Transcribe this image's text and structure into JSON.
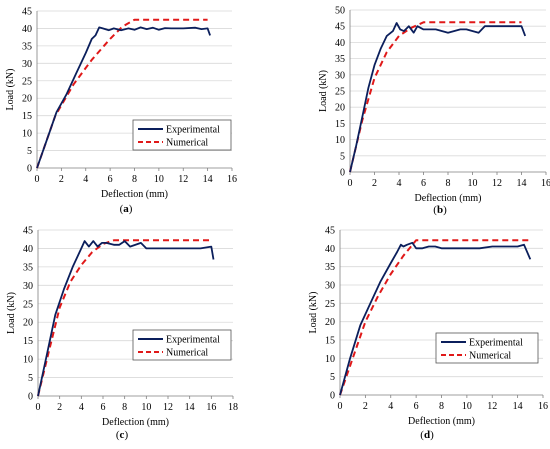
{
  "colors": {
    "experimental": "#0b1f5c",
    "numerical": "#e01919",
    "grid": "#d9d9d9",
    "axis": "#7f7f7f"
  },
  "chart_data": [
    {
      "type": "line",
      "caption": "(a)",
      "xlabel": "Deflection (mm)",
      "ylabel": "Load (kN)",
      "xlim": [
        0,
        16
      ],
      "ylim": [
        0,
        45
      ],
      "xticks": [
        0,
        2,
        4,
        6,
        8,
        10,
        12,
        14,
        16
      ],
      "yticks": [
        0,
        5,
        10,
        15,
        20,
        25,
        30,
        35,
        40,
        45
      ],
      "grid": "horizontal",
      "legend": "bottom-right",
      "series": [
        {
          "name": "Experimental",
          "style": "solid",
          "x": [
            0,
            0.8,
            1.6,
            2.4,
            3.2,
            4.0,
            4.5,
            4.8,
            5.1,
            5.4,
            5.9,
            6.3,
            6.9,
            7.5,
            8.0,
            8.5,
            9.0,
            9.5,
            10.0,
            10.5,
            11.0,
            12.0,
            13.0,
            13.5,
            14.0,
            14.2
          ],
          "y": [
            0,
            8,
            16,
            21,
            27,
            33,
            37,
            38,
            40.3,
            40,
            39.5,
            40,
            39.5,
            40,
            39.6,
            40.3,
            39.8,
            40.2,
            39.6,
            40.1,
            40,
            40,
            40.2,
            39.8,
            40,
            38
          ]
        },
        {
          "name": "Numerical",
          "style": "dashed",
          "x": [
            0,
            1.5,
            3.0,
            4.5,
            6.0,
            7.0,
            8.0,
            14.0
          ],
          "y": [
            0,
            15,
            24,
            31,
            37,
            40.5,
            42.5,
            42.5
          ]
        }
      ]
    },
    {
      "type": "line",
      "caption": "(b)",
      "xlabel": "Deflection (mm)",
      "ylabel": "Load (kN)",
      "xlim": [
        0,
        16
      ],
      "ylim": [
        0,
        50
      ],
      "xticks": [
        0,
        2,
        4,
        6,
        8,
        10,
        12,
        14,
        16
      ],
      "yticks": [
        0,
        5,
        10,
        15,
        20,
        25,
        30,
        35,
        40,
        45,
        50
      ],
      "grid": "horizontal",
      "legend": "none",
      "series": [
        {
          "name": "Experimental",
          "style": "solid",
          "x": [
            0,
            0.5,
            1.0,
            1.5,
            2.0,
            2.5,
            3.0,
            3.5,
            3.8,
            4.1,
            4.4,
            4.8,
            5.2,
            5.5,
            6.0,
            7.0,
            8.0,
            9.0,
            9.5,
            10.5,
            11.0,
            12.0,
            13.0,
            14.0,
            14.3
          ],
          "y": [
            0,
            8,
            17,
            26,
            33,
            38,
            42,
            43.5,
            46,
            44,
            43.5,
            45,
            43,
            45,
            44,
            44,
            43,
            44,
            44,
            43,
            45,
            45,
            45,
            45,
            42
          ]
        },
        {
          "name": "Numerical",
          "style": "dashed",
          "x": [
            0,
            1.0,
            2.0,
            3.0,
            4.0,
            5.0,
            6.0,
            14.0
          ],
          "y": [
            0,
            16,
            29,
            37,
            42,
            44.5,
            46.2,
            46.2
          ]
        }
      ]
    },
    {
      "type": "line",
      "caption": "(c)",
      "xlabel": "Deflection (mm)",
      "ylabel": "Load (kN)",
      "xlim": [
        0,
        18
      ],
      "ylim": [
        0,
        45
      ],
      "xticks": [
        0,
        2,
        4,
        6,
        8,
        10,
        12,
        14,
        16,
        18
      ],
      "yticks": [
        0,
        5,
        10,
        15,
        20,
        25,
        30,
        35,
        40,
        45
      ],
      "grid": "horizontal",
      "legend": "bottom-right",
      "series": [
        {
          "name": "Experimental",
          "style": "solid",
          "x": [
            0,
            0.8,
            1.6,
            2.4,
            3.2,
            4.0,
            4.3,
            4.7,
            5.1,
            5.5,
            5.9,
            6.3,
            7.0,
            7.5,
            8.0,
            8.5,
            9.5,
            10.0,
            11.0,
            12.0,
            13.0,
            14.0,
            15.0,
            16.0,
            16.2
          ],
          "y": [
            0,
            11,
            22,
            29,
            35,
            40,
            42,
            40.5,
            42,
            40.5,
            41.5,
            41.5,
            41,
            41,
            42,
            40.5,
            41.5,
            40,
            40,
            40,
            40,
            40,
            40,
            40.5,
            37
          ]
        },
        {
          "name": "Numerical",
          "style": "dashed",
          "x": [
            0,
            1.0,
            2.0,
            3.0,
            4.0,
            5.0,
            6.0,
            7.0,
            16.0
          ],
          "y": [
            0,
            12,
            24,
            31,
            35.5,
            39,
            41.2,
            42.2,
            42.2
          ]
        }
      ]
    },
    {
      "type": "line",
      "caption": "(d)",
      "xlabel": "Deflection (mm)",
      "ylabel": "Load (kN)",
      "xlim": [
        0,
        16
      ],
      "ylim": [
        0,
        45
      ],
      "xticks": [
        0,
        2,
        4,
        6,
        8,
        10,
        12,
        14,
        16
      ],
      "yticks": [
        0,
        5,
        10,
        15,
        20,
        25,
        30,
        35,
        40,
        45
      ],
      "grid": "horizontal",
      "legend": "bottom-right",
      "series": [
        {
          "name": "Experimental",
          "style": "solid",
          "x": [
            0,
            0.8,
            1.6,
            2.4,
            3.2,
            4.0,
            4.5,
            4.8,
            5.0,
            5.3,
            5.7,
            6.0,
            6.5,
            7.0,
            7.5,
            8.0,
            9.0,
            10.0,
            11.0,
            12.0,
            13.0,
            14.0,
            14.5,
            15.0
          ],
          "y": [
            0,
            10,
            19,
            25,
            31,
            36,
            39,
            41,
            40.5,
            41,
            41.5,
            40,
            40,
            40.5,
            40.5,
            40,
            40,
            40,
            40,
            40.5,
            40.5,
            40.5,
            41,
            37
          ]
        },
        {
          "name": "Numerical",
          "style": "dashed",
          "x": [
            0,
            1.0,
            2.0,
            3.0,
            4.0,
            5.0,
            6.0,
            15.0
          ],
          "y": [
            0,
            10,
            20,
            27,
            33,
            38,
            42.2,
            42.2
          ]
        }
      ]
    }
  ]
}
